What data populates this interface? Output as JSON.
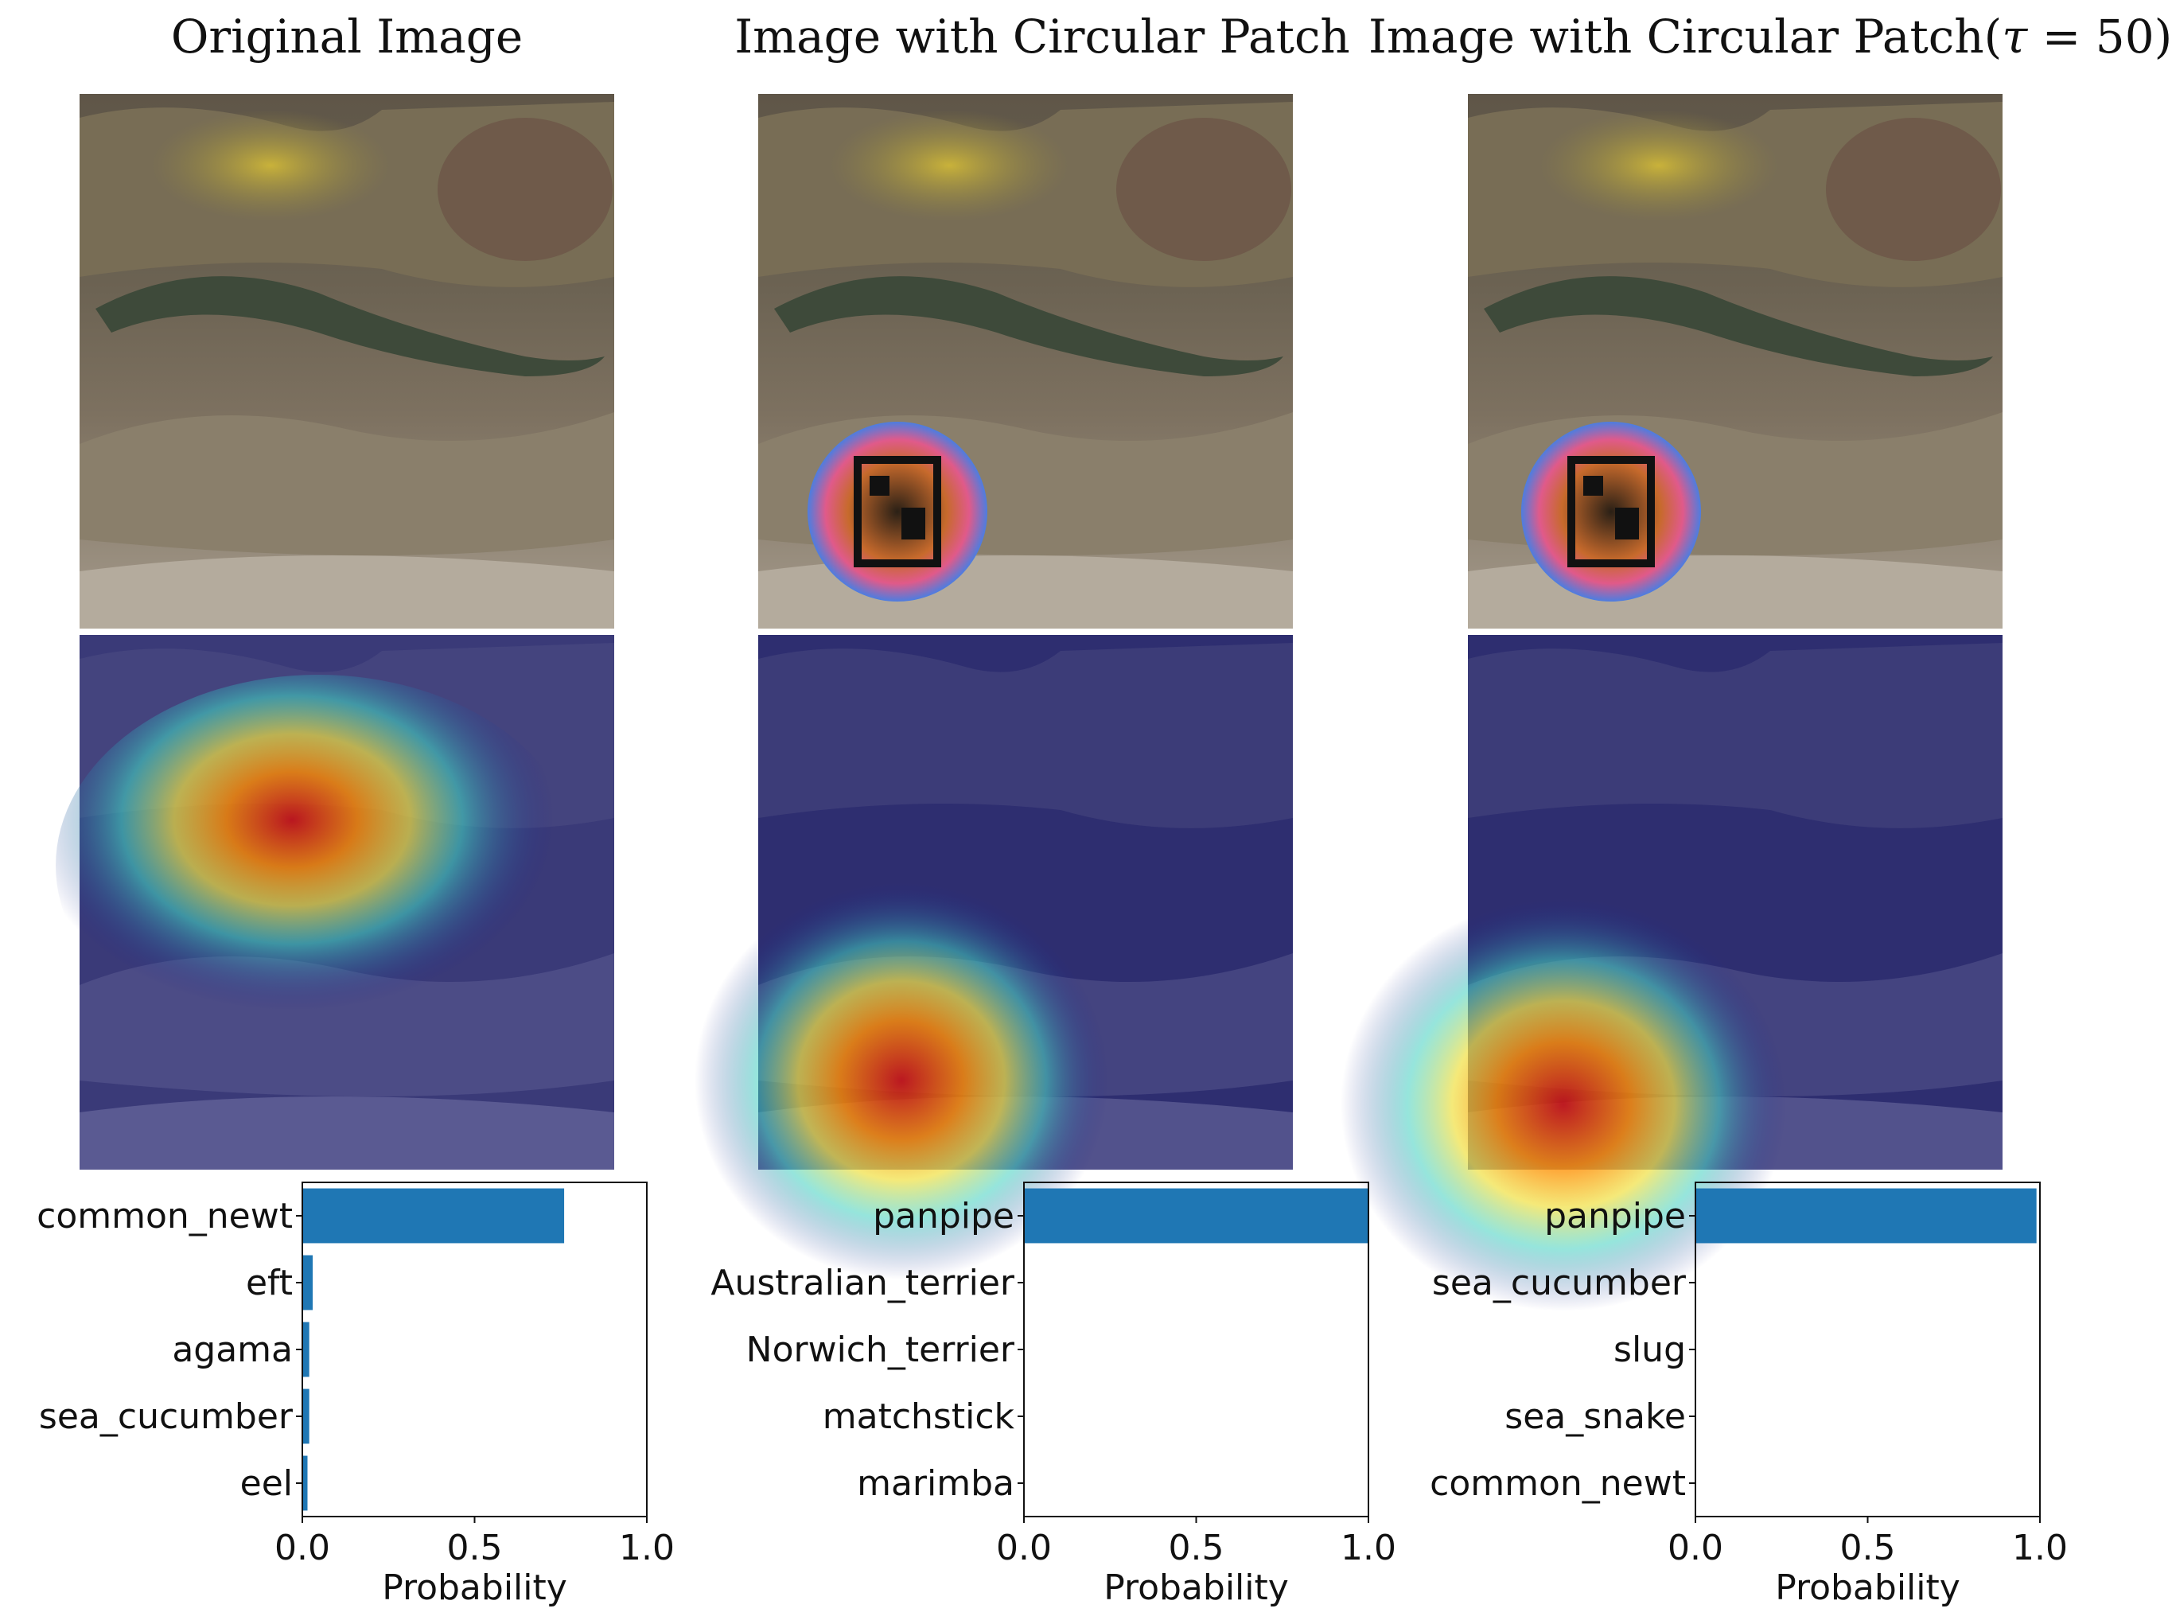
{
  "columns": [
    {
      "title": "Original Image"
    },
    {
      "title": "Image with Circular Patch"
    },
    {
      "title_prefix": "Image with Circular Patch(",
      "title_tau": "τ",
      "title_suffix": " = 50)"
    }
  ],
  "colors": {
    "bar": "#1f77b4",
    "heat_low": "#1a1a8c",
    "heat_high": "#d01010"
  },
  "chart_data": [
    {
      "type": "bar",
      "orientation": "horizontal",
      "categories": [
        "common_newt",
        "eft",
        "agama",
        "sea_cucumber",
        "eel"
      ],
      "values": [
        0.76,
        0.03,
        0.02,
        0.02,
        0.015
      ],
      "xlabel": "Probability",
      "xlim": [
        0,
        1
      ],
      "xticks": [
        "0.0",
        "0.5",
        "1.0"
      ]
    },
    {
      "type": "bar",
      "orientation": "horizontal",
      "categories": [
        "panpipe",
        "Australian_terrier",
        "Norwich_terrier",
        "matchstick",
        "marimba"
      ],
      "values": [
        1.0,
        0.0,
        0.0,
        0.0,
        0.0
      ],
      "xlabel": "Probability",
      "xlim": [
        0,
        1
      ],
      "xticks": [
        "0.0",
        "0.5",
        "1.0"
      ]
    },
    {
      "type": "bar",
      "orientation": "horizontal",
      "categories": [
        "panpipe",
        "sea_cucumber",
        "slug",
        "sea_snake",
        "common_newt"
      ],
      "values": [
        0.99,
        0.0,
        0.0,
        0.0,
        0.0
      ],
      "xlabel": "Probability",
      "xlim": [
        0,
        1
      ],
      "xticks": [
        "0.0",
        "0.5",
        "1.0"
      ]
    }
  ]
}
